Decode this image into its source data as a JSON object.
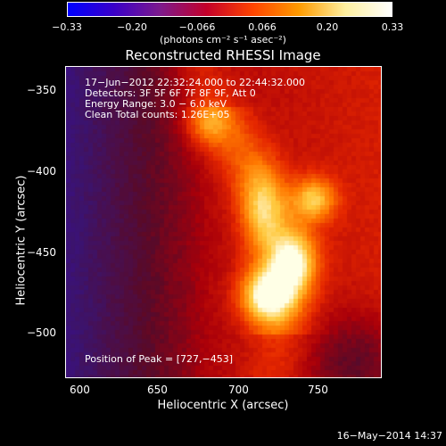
{
  "colorbar": {
    "ticks": [
      "−0.33",
      "−0.20",
      "−0.066",
      "0.066",
      "0.20",
      "0.33"
    ],
    "units": "(photons cm⁻² s⁻¹ asec⁻²)",
    "colors": [
      "#0000ff",
      "#3a00c8",
      "#7d1a8c",
      "#c4002a",
      "#ff4400",
      "#ff9b00",
      "#fff0a0",
      "#ffffff"
    ]
  },
  "title": "Reconstructed RHESSI Image",
  "annotations": {
    "time": "17−Jun−2012 22:32:24.000 to 22:44:32.000",
    "detectors": "Detectors: 3F 5F 6F 7F 8F 9F, Att 0",
    "energy": "Energy Range: 3.0 − 6.0 keV",
    "clean": "Clean    Total counts: 1.26E+05",
    "peak": "Position of Peak = [727,−453]"
  },
  "axes": {
    "xlabel": "Heliocentric X (arcsec)",
    "ylabel": "Heliocentric Y (arcsec)",
    "xticks": [
      "600",
      "650",
      "700",
      "750"
    ],
    "yticks": [
      "−350",
      "−400",
      "−450",
      "−500"
    ],
    "xrange": [
      594,
      786
    ],
    "yrange": [
      -526,
      -336
    ]
  },
  "footer": "16−May−2014 14:37"
}
